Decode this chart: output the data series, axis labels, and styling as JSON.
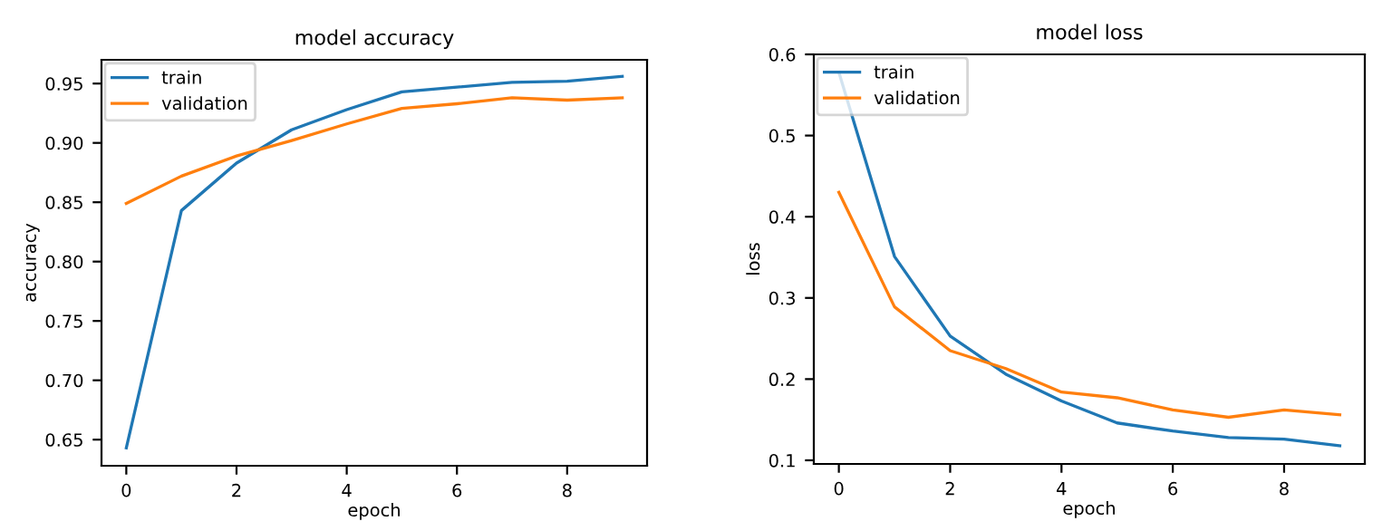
{
  "chart_data": [
    {
      "type": "line",
      "title": "model accuracy",
      "xlabel": "epoch",
      "ylabel": "accuracy",
      "x": [
        0,
        1,
        2,
        3,
        4,
        5,
        6,
        7,
        8,
        9
      ],
      "series": [
        {
          "name": "train",
          "color": "#1f77b4",
          "values": [
            0.643,
            0.843,
            0.883,
            0.911,
            0.928,
            0.943,
            0.947,
            0.951,
            0.952,
            0.956
          ]
        },
        {
          "name": "validation",
          "color": "#ff7f0e",
          "values": [
            0.849,
            0.872,
            0.889,
            0.902,
            0.916,
            0.929,
            0.933,
            0.938,
            0.936,
            0.938
          ]
        }
      ],
      "xlim": [
        -0.45,
        9.45
      ],
      "ylim": [
        0.628,
        0.97
      ],
      "xticks": [
        0,
        2,
        4,
        6,
        8
      ],
      "yticks": [
        {
          "value": 0.65,
          "label": "0.65"
        },
        {
          "value": 0.7,
          "label": "0.70"
        },
        {
          "value": 0.75,
          "label": "0.75"
        },
        {
          "value": 0.8,
          "label": "0.80"
        },
        {
          "value": 0.85,
          "label": "0.85"
        },
        {
          "value": 0.9,
          "label": "0.90"
        },
        {
          "value": 0.95,
          "label": "0.95"
        }
      ],
      "legend": "top left"
    },
    {
      "type": "line",
      "title": "model loss",
      "xlabel": "epoch",
      "ylabel": "loss",
      "x": [
        0,
        1,
        2,
        3,
        4,
        5,
        6,
        7,
        8,
        9
      ],
      "series": [
        {
          "name": "train",
          "color": "#1f77b4",
          "values": [
            0.578,
            0.351,
            0.253,
            0.206,
            0.173,
            0.146,
            0.136,
            0.128,
            0.126,
            0.118
          ]
        },
        {
          "name": "validation",
          "color": "#ff7f0e",
          "values": [
            0.43,
            0.289,
            0.235,
            0.213,
            0.184,
            0.177,
            0.162,
            0.153,
            0.162,
            0.156
          ]
        }
      ],
      "xlim": [
        -0.45,
        9.45
      ],
      "ylim": [
        0.0955,
        0.6
      ],
      "xticks": [
        0,
        2,
        4,
        6,
        8
      ],
      "yticks": [
        0.1,
        0.2,
        0.3,
        0.4,
        0.5,
        0.6
      ],
      "legend": "top left"
    }
  ]
}
